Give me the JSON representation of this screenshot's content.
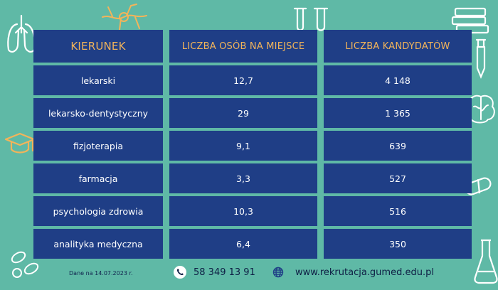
{
  "table": {
    "headers": [
      "KIERUNEK",
      "LICZBA OSÓB NA MIEJSCE",
      "LICZBA KANDYDATÓW"
    ],
    "rows": [
      [
        "lekarski",
        "12,7",
        "4 148"
      ],
      [
        "lekarsko-dentystyczny",
        "29",
        "1 365"
      ],
      [
        "fizjoterapia",
        "9,1",
        "639"
      ],
      [
        "farmacja",
        "3,3",
        "527"
      ],
      [
        "psychologia zdrowia",
        "10,3",
        "516"
      ],
      [
        "analityka medyczna",
        "6,4",
        "350"
      ]
    ]
  },
  "footer": {
    "date": "Dane na 14.07.2023 r.",
    "phone": "58 349 13 91",
    "website": "www.rekrutacja.gumed.edu.pl"
  },
  "colors": {
    "background": "#5fb9a6",
    "cell": "#1f3e86",
    "header_text": "#f2b45a",
    "doodle_white": "#ffffff",
    "doodle_orange": "#f2b45a"
  },
  "icons": [
    "lungs-icon",
    "neuron-icon",
    "test-tubes-icon",
    "books-icon",
    "dropper-icon",
    "brain-icon",
    "graduation-cap-icon",
    "pill-icon",
    "flask-icon",
    "phone-icon",
    "globe-icon"
  ]
}
